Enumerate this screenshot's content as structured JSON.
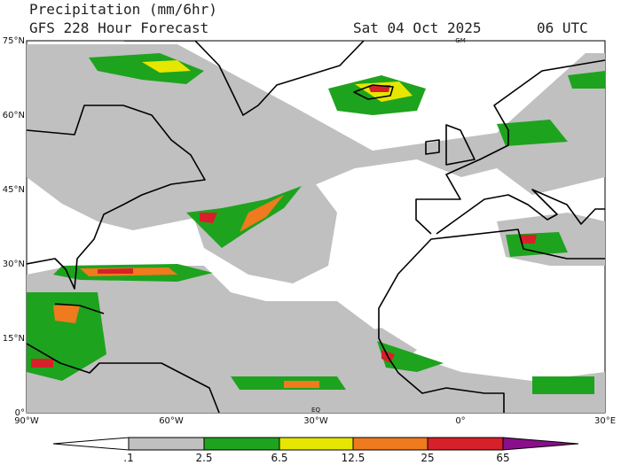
{
  "header": {
    "title": "Precipitation (mm/6hr)",
    "model": "GFS 228 Hour Forecast",
    "date": "Sat 04 Oct 2025",
    "time": "06 UTC"
  },
  "map": {
    "lat_labels": [
      "0°",
      "15°N",
      "30°N",
      "45°N",
      "60°N",
      "75°N"
    ],
    "lon_labels": [
      "90°W",
      "60°W",
      "30°W",
      "0°",
      "30°E"
    ],
    "markers": [
      "GM",
      "EQ"
    ]
  },
  "colorbar": {
    "labels": [
      ".1",
      "2.5",
      "6.5",
      "12.5",
      "25",
      "65"
    ]
  }
}
